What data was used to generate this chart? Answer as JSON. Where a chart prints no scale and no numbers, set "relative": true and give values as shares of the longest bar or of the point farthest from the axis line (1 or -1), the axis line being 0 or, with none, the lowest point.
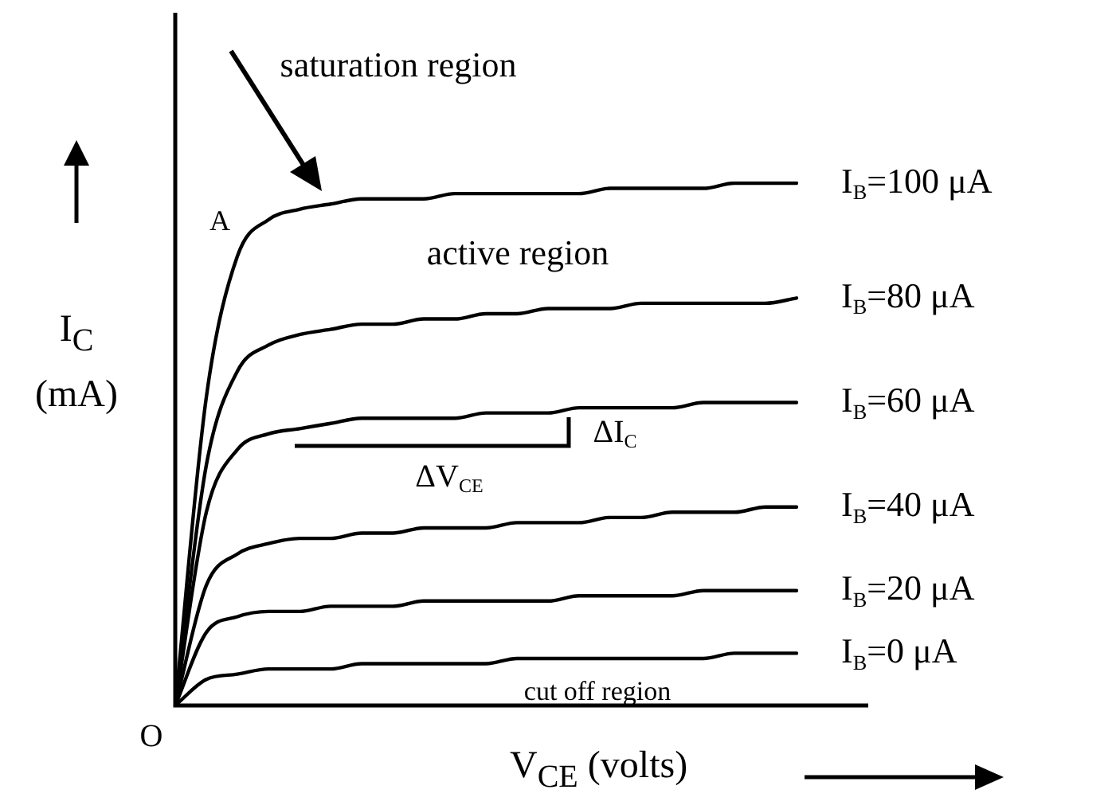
{
  "chart_data": {
    "type": "line",
    "relative": true,
    "xlabel": "V$_{CE}$ (volts)",
    "ylabel": "I$_{C}$ (mA)",
    "legend": false,
    "marker": "none",
    "line_style": "solid",
    "categories": [
      null,
      null,
      null,
      null,
      null,
      null,
      null,
      null,
      null,
      null,
      null,
      null,
      null,
      null,
      null,
      null,
      null,
      null,
      null,
      null,
      null
    ],
    "series": [
      {
        "name": "I$_{B}$=100 μA",
        "color": "#000000",
        "values": [
          0,
          0.59,
          0.86,
          0.93,
          0.95,
          0.96,
          0.97,
          0.97,
          0.97,
          0.98,
          0.98,
          0.98,
          0.98,
          0.98,
          0.99,
          0.99,
          0.99,
          0.99,
          1,
          1,
          1
        ]
      },
      {
        "name": "I$_{B}$=80 μA",
        "color": "#000000",
        "values": [
          0,
          0.46,
          0.64,
          0.69,
          0.71,
          0.72,
          0.73,
          0.73,
          0.74,
          0.74,
          0.75,
          0.75,
          0.76,
          0.76,
          0.76,
          0.77,
          0.77,
          0.77,
          0.77,
          0.77,
          0.78
        ]
      },
      {
        "name": "I$_{B}$=60 μA",
        "color": "#000000",
        "values": [
          0,
          0.37,
          0.49,
          0.52,
          0.53,
          0.54,
          0.55,
          0.55,
          0.55,
          0.55,
          0.56,
          0.56,
          0.56,
          0.57,
          0.57,
          0.57,
          0.57,
          0.58,
          0.58,
          0.58,
          0.58
        ]
      },
      {
        "name": "I$_{B}$=40 μA",
        "color": "#000000",
        "values": [
          0,
          0.23,
          0.29,
          0.31,
          0.32,
          0.32,
          0.33,
          0.33,
          0.34,
          0.34,
          0.34,
          0.35,
          0.35,
          0.35,
          0.36,
          0.36,
          0.37,
          0.37,
          0.37,
          0.38,
          0.38
        ]
      },
      {
        "name": "I$_{B}$=20 μA",
        "color": "#000000",
        "values": [
          0,
          0.14,
          0.17,
          0.18,
          0.18,
          0.19,
          0.19,
          0.19,
          0.2,
          0.2,
          0.2,
          0.2,
          0.2,
          0.21,
          0.21,
          0.21,
          0.21,
          0.22,
          0.22,
          0.22,
          0.22
        ]
      },
      {
        "name": "I$_{B}$=0 μA",
        "color": "#000000",
        "values": [
          0,
          0.05,
          0.06,
          0.07,
          0.07,
          0.07,
          0.08,
          0.08,
          0.08,
          0.08,
          0.08,
          0.09,
          0.09,
          0.09,
          0.09,
          0.09,
          0.09,
          0.09,
          0.1,
          0.1,
          0.1
        ]
      }
    ],
    "annotations": [
      "saturation region",
      "active region",
      "cut off region",
      "A",
      "O",
      "ΔV$_{CE}$",
      "ΔI$_{C}$"
    ]
  }
}
